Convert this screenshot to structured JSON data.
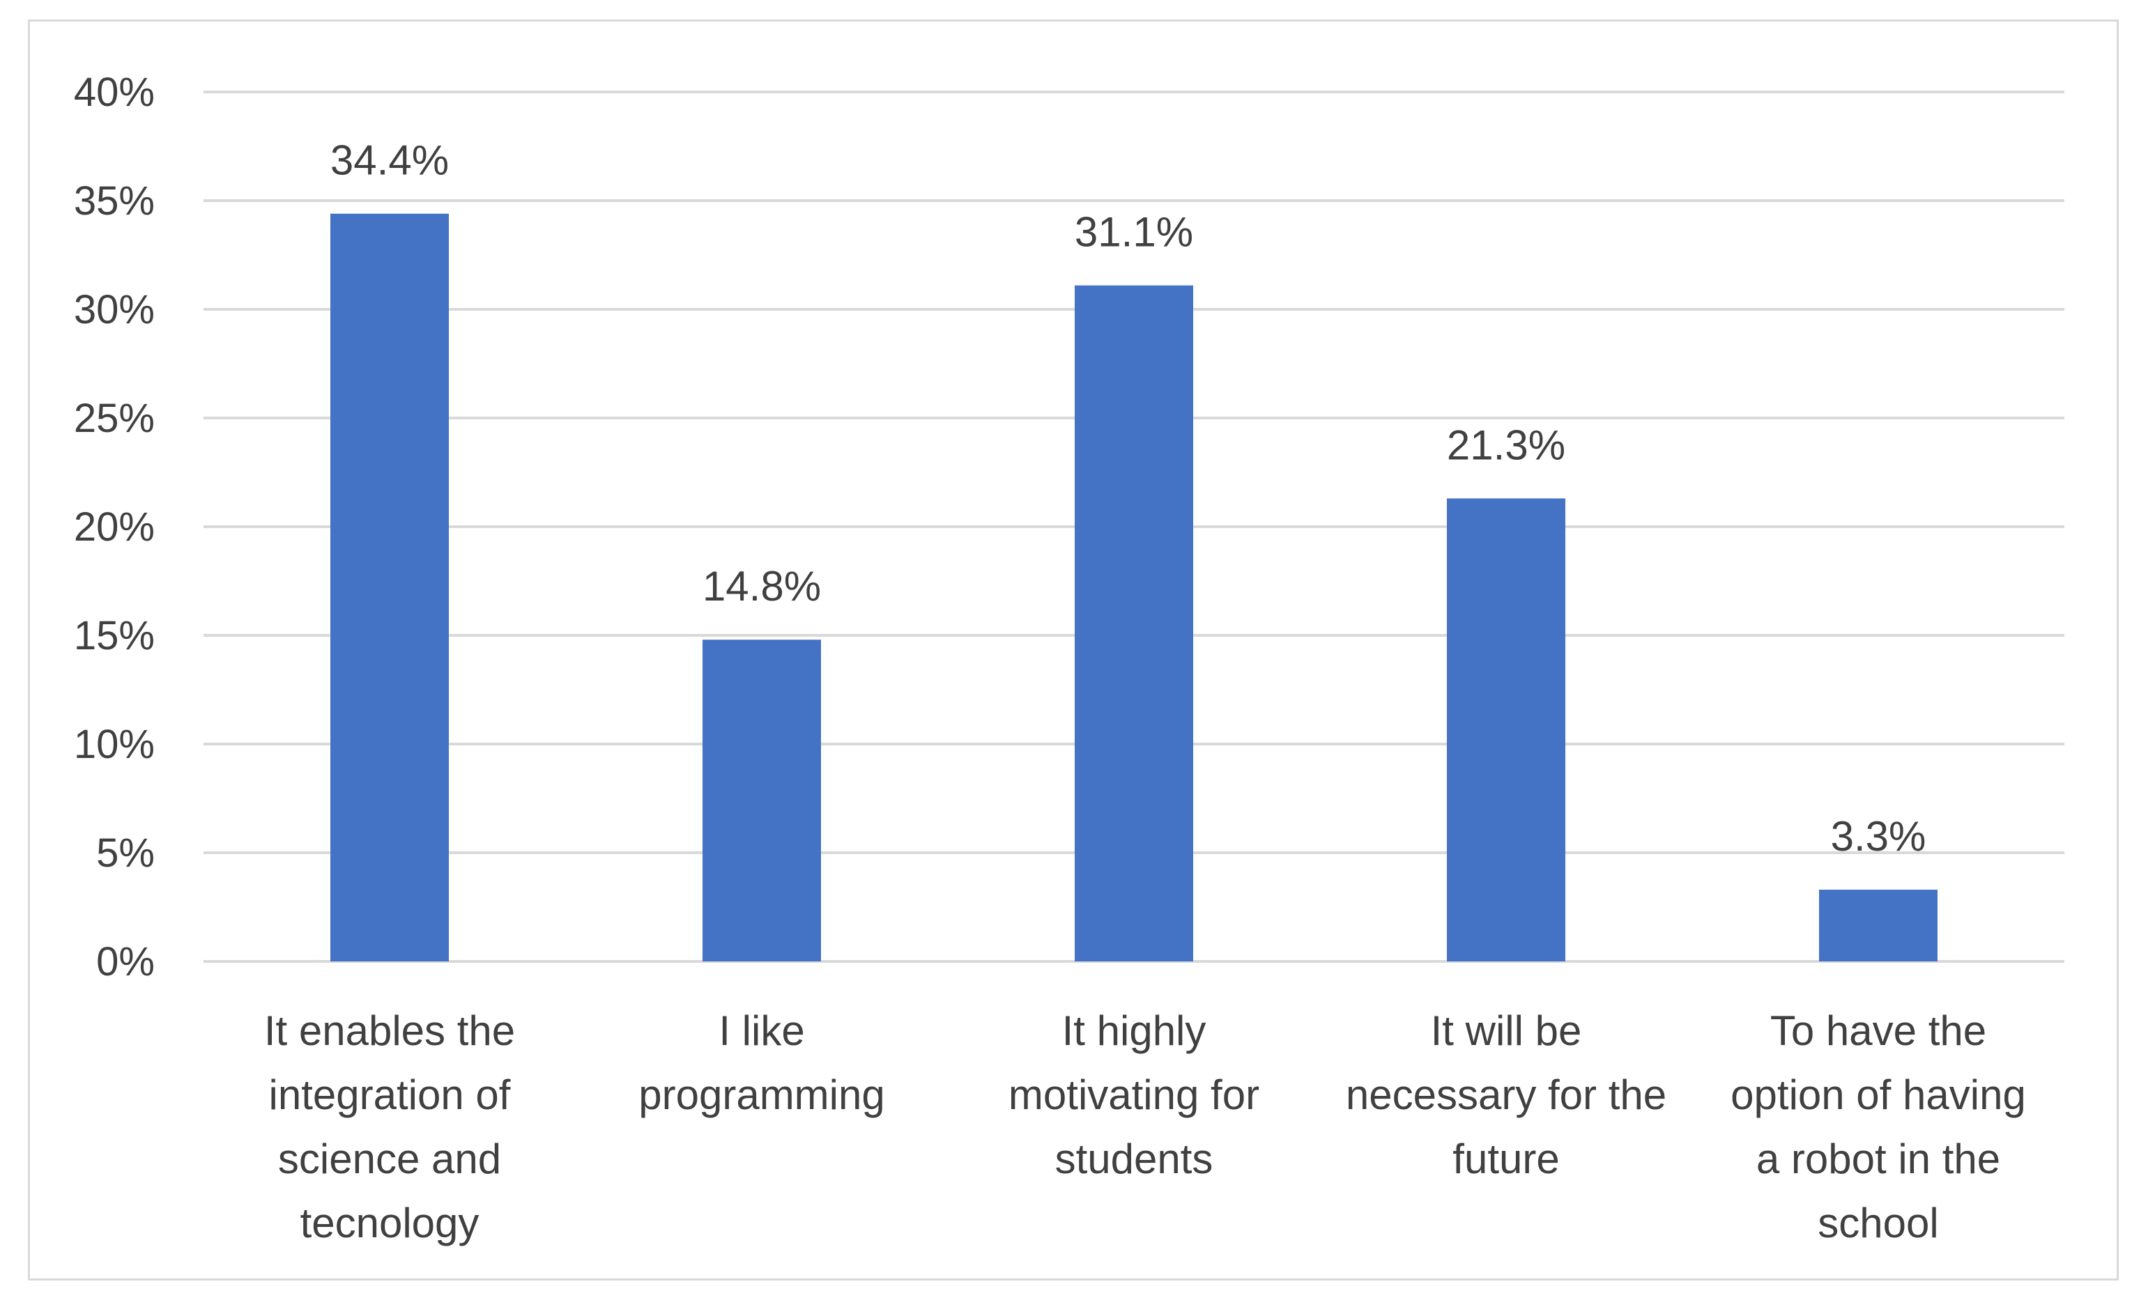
{
  "chart_data": {
    "type": "bar",
    "title": "",
    "xlabel": "",
    "ylabel": "",
    "ylim": [
      0,
      40
    ],
    "y_ticks": [
      0,
      5,
      10,
      15,
      20,
      25,
      30,
      35,
      40
    ],
    "y_tick_labels": [
      "0%",
      "5%",
      "10%",
      "15%",
      "20%",
      "25%",
      "30%",
      "35%",
      "40%"
    ],
    "grid": true,
    "legend": "none",
    "bar_color": "#4472c4",
    "grid_color": "#d9d9d9",
    "categories": [
      [
        "It enables the",
        "integration of",
        "science and",
        "tecnology"
      ],
      [
        "I like",
        "programming"
      ],
      [
        "It highly",
        "motivating for",
        "students"
      ],
      [
        "It will be",
        "necessary for the",
        "future"
      ],
      [
        "To have the",
        "option of having",
        "a robot in the",
        "school"
      ]
    ],
    "values": [
      34.4,
      14.8,
      31.1,
      21.3,
      3.3
    ],
    "data_labels": [
      "34.4%",
      "14.8%",
      "31.1%",
      "21.3%",
      "3.3%"
    ]
  }
}
